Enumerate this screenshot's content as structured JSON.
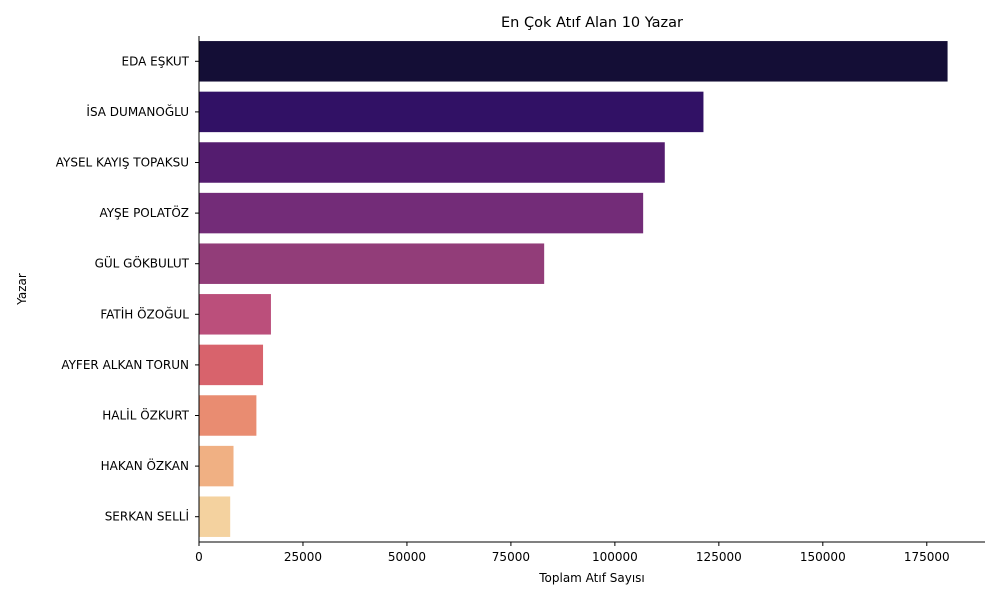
{
  "chart_data": {
    "type": "bar",
    "orientation": "horizontal",
    "title": "En Çok Atıf Alan 10 Yazar",
    "xlabel": "Toplam Atıf Sayısı",
    "ylabel": "Yazar",
    "xlim": [
      0,
      189000
    ],
    "xticks": [
      0,
      25000,
      50000,
      75000,
      100000,
      125000,
      150000,
      175000
    ],
    "xtick_labels": [
      "0",
      "25000",
      "50000",
      "75000",
      "100000",
      "125000",
      "150000",
      "175000"
    ],
    "grid": false,
    "categories": [
      "EDA EŞKUT",
      "İSA DUMANOĞLU",
      "AYSEL KAYIŞ TOPAKSU",
      "AYŞE POLATÖZ",
      "GÜL GÖKBULUT",
      "FATİH ÖZOĞUL",
      "AYFER ALKAN TORUN",
      "HALİL ÖZKURT",
      "HAKAN ÖZKAN",
      "SERKAN SELLİ"
    ],
    "values": [
      180000,
      121300,
      112000,
      106800,
      83000,
      17300,
      15400,
      13800,
      8300,
      7500
    ],
    "colors": [
      "#140e36",
      "#311165",
      "#541c6f",
      "#732c78",
      "#923d79",
      "#bb4f7b",
      "#d8636c",
      "#e98c71",
      "#f0b083",
      "#f4d29f"
    ]
  }
}
